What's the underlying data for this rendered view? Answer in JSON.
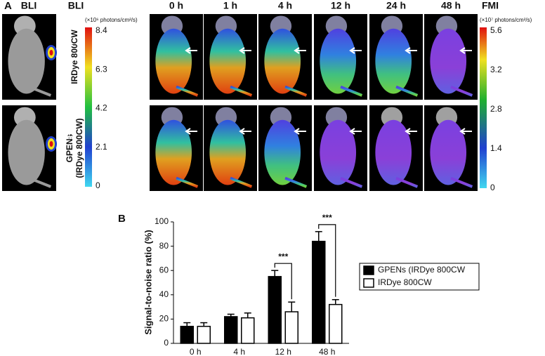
{
  "panel_a": {
    "label": "A",
    "bli_heading": "BLI",
    "bli_bar_heading": "BLI",
    "bli_unit": "(×10⁶ photons/cm²/s)",
    "bli_ticks": [
      "8.4",
      "6.3",
      "4.2",
      "2.1",
      "0"
    ],
    "times": [
      "0 h",
      "1 h",
      "4 h",
      "12 h",
      "24 h",
      "48 h"
    ],
    "fmi_heading": "FMI",
    "fmi_unit": "(×10⁷ photons/cm²/s)",
    "fmi_ticks": [
      "5.6",
      "3.2",
      "2.8",
      "1.4",
      "0"
    ],
    "rows": [
      [
        "IRDye 800CW"
      ],
      [
        "GPENs",
        "(IRDye 800CW)"
      ]
    ]
  },
  "chart_data": {
    "type": "bar",
    "panel_label": "B",
    "ylabel": "Signal-to-noise ratio (%)",
    "categories": [
      "0 h",
      "4 h",
      "12 h",
      "48 h"
    ],
    "series": [
      {
        "name": "GPENs (IRDye 800CW",
        "color": "#000000",
        "values": [
          14,
          22,
          55,
          84
        ],
        "errors": [
          3,
          2,
          5,
          8
        ]
      },
      {
        "name": "IRDye 800CW",
        "color": "#ffffff",
        "values": [
          14,
          21,
          26,
          32
        ],
        "errors": [
          3,
          4,
          8,
          4
        ]
      }
    ],
    "ylim": [
      0,
      100
    ],
    "yticks": [
      0,
      20,
      40,
      60,
      80,
      100
    ],
    "annotations": [
      "***",
      "***"
    ]
  }
}
